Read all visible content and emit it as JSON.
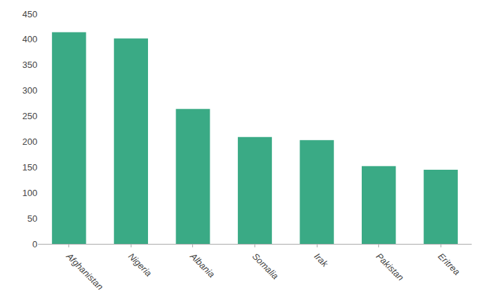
{
  "chart_data": {
    "type": "bar",
    "categories": [
      "Afghanistan",
      "Nigeria",
      "Albania",
      "Somalia",
      "Irak",
      "Pakistan",
      "Eritrea"
    ],
    "values": [
      414,
      402,
      264,
      209,
      203,
      152,
      145
    ],
    "color": "#3aaa85",
    "ylim": [
      0,
      450
    ],
    "yticks": [
      0,
      50,
      100,
      150,
      200,
      250,
      300,
      350,
      400,
      450
    ],
    "grid": false
  }
}
